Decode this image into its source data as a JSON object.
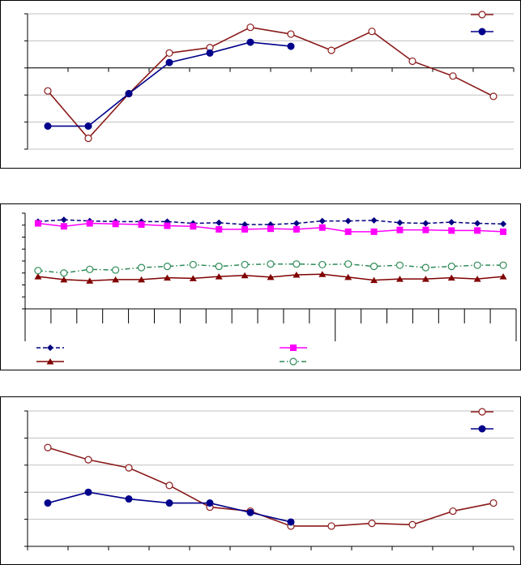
{
  "chart_data": [
    {
      "type": "line",
      "ylim": [
        -3,
        2
      ],
      "xlim": [
        0.5,
        12.5
      ],
      "x_ticks": [
        0.5,
        1.5,
        2.5,
        3.5,
        4.5,
        5.5,
        6.5,
        7.5,
        8.5,
        9.5,
        10.5,
        11.5,
        12.5
      ],
      "grid": true,
      "legend_position": "top-right",
      "series": [
        {
          "color": "#8b1a1a",
          "marker": "open-circle",
          "x": [
            1,
            2,
            3,
            4,
            5,
            6,
            7,
            8,
            9,
            10,
            11,
            12
          ],
          "values": [
            -0.85,
            -2.6,
            -0.95,
            0.55,
            0.75,
            1.5,
            1.25,
            0.65,
            1.35,
            0.25,
            -0.3,
            -1.05
          ]
        },
        {
          "color": "#00008b",
          "marker": "filled-circle",
          "x": [
            1,
            2,
            3,
            4,
            5,
            6,
            7
          ],
          "values": [
            -2.15,
            -2.15,
            -0.95,
            0.2,
            0.55,
            0.95,
            0.8
          ]
        }
      ]
    },
    {
      "type": "line",
      "ylim": [
        0,
        8
      ],
      "xlim": [
        0.5,
        19.5
      ],
      "x_ticks": [
        0.5,
        1.5,
        2.5,
        3.5,
        4.5,
        5.5,
        6.5,
        7.5,
        8.5,
        9.5,
        10.5,
        11.5,
        12.5,
        13.5,
        14.5,
        15.5,
        16.5,
        17.5,
        18.5,
        19.5
      ],
      "x_group_separator": 12.5,
      "legend_position": "bottom",
      "series": [
        {
          "color": "#000080",
          "marker": "filled-diamond",
          "line_style": "dashed",
          "values": [
            7.3,
            7.45,
            7.35,
            7.3,
            7.3,
            7.3,
            7.15,
            7.2,
            7.05,
            7.05,
            7.15,
            7.35,
            7.35,
            7.4,
            7.2,
            7.15,
            7.25,
            7.15,
            7.1
          ]
        },
        {
          "color": "#ff00ff",
          "marker": "filled-square",
          "line_style": "solid",
          "values": [
            7.15,
            6.9,
            7.15,
            7.1,
            7.05,
            6.95,
            6.9,
            6.65,
            6.65,
            6.7,
            6.65,
            6.8,
            6.45,
            6.45,
            6.6,
            6.6,
            6.55,
            6.55,
            6.45
          ]
        },
        {
          "color": "#800000",
          "marker": "filled-triangle",
          "line_style": "solid",
          "values": [
            2.7,
            2.45,
            2.35,
            2.45,
            2.45,
            2.6,
            2.55,
            2.7,
            2.8,
            2.65,
            2.85,
            2.9,
            2.65,
            2.4,
            2.5,
            2.5,
            2.6,
            2.5,
            2.7
          ]
        },
        {
          "color": "#2e8b57",
          "marker": "open-circle",
          "line_style": "dash-dot",
          "values": [
            3.2,
            3.0,
            3.3,
            3.25,
            3.45,
            3.55,
            3.7,
            3.55,
            3.7,
            3.75,
            3.75,
            3.7,
            3.75,
            3.55,
            3.65,
            3.45,
            3.55,
            3.65,
            3.65
          ]
        }
      ]
    },
    {
      "type": "line",
      "ylim": [
        0,
        5
      ],
      "xlim": [
        0.5,
        12.5
      ],
      "x_ticks": [
        0.5,
        1.5,
        2.5,
        3.5,
        4.5,
        5.5,
        6.5,
        7.5,
        8.5,
        9.5,
        10.5,
        11.5,
        12.5
      ],
      "grid": true,
      "legend_position": "top-right",
      "series": [
        {
          "color": "#8b1a1a",
          "marker": "open-circle",
          "x": [
            1,
            2,
            3,
            4,
            5,
            6,
            7,
            8,
            9,
            10,
            11,
            12
          ],
          "values": [
            3.65,
            3.2,
            2.9,
            2.25,
            1.45,
            1.3,
            0.75,
            0.75,
            0.85,
            0.8,
            1.3,
            1.6
          ]
        },
        {
          "color": "#00008b",
          "marker": "filled-circle",
          "x": [
            1,
            2,
            3,
            4,
            5,
            6,
            7
          ],
          "values": [
            1.6,
            2.0,
            1.75,
            1.6,
            1.6,
            1.25,
            0.9
          ]
        }
      ]
    }
  ]
}
